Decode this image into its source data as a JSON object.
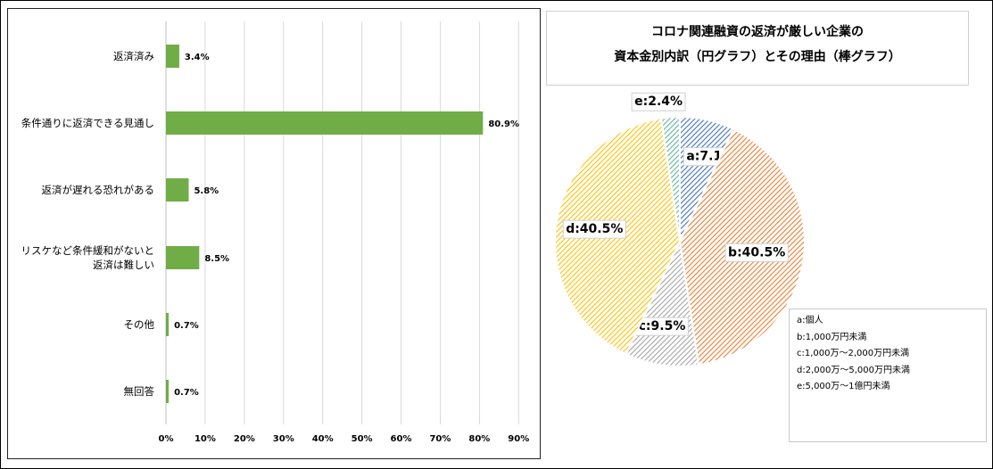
{
  "chart_title": {
    "line1": "コロナ関連融資の返済が厳しい企業の",
    "line2": "資本金別内訳（円グラフ）とその理由（棒グラフ）"
  },
  "chart_data": [
    {
      "type": "bar",
      "orientation": "horizontal",
      "categories": [
        [
          "返済済み"
        ],
        [
          "条件通りに返済できる見通し"
        ],
        [
          "返済が遅れる恐れがある"
        ],
        [
          "リスケなど条件緩和がないと",
          "返済は難しい"
        ],
        [
          "その他"
        ],
        [
          "無回答"
        ]
      ],
      "values": [
        3.4,
        80.9,
        5.8,
        8.5,
        0.7,
        0.7
      ],
      "value_labels": [
        "3.4%",
        "80.9%",
        "5.8%",
        "8.5%",
        "0.7%",
        "0.7%"
      ],
      "xlim": [
        0,
        90
      ],
      "xticks": [
        0,
        10,
        20,
        30,
        40,
        50,
        60,
        70,
        80,
        90
      ],
      "xtick_labels": [
        "0%",
        "10%",
        "20%",
        "30%",
        "40%",
        "50%",
        "60%",
        "70%",
        "80%",
        "90%"
      ],
      "grid": true,
      "color": "#70ad47"
    },
    {
      "type": "pie",
      "slices": [
        {
          "key": "a",
          "value": 7.1,
          "label": "a:7.1%",
          "color": "#4472c4"
        },
        {
          "key": "b",
          "value": 40.5,
          "label": "b:40.5%",
          "color": "#ed7d31"
        },
        {
          "key": "c",
          "value": 9.5,
          "label": "c:9.5%",
          "color": "#a5a5a5"
        },
        {
          "key": "d",
          "value": 40.5,
          "label": "d:40.5%",
          "color": "#ffc000"
        },
        {
          "key": "e",
          "value": 2.4,
          "label": "e:2.4%",
          "color": "#5fb59a"
        }
      ],
      "legend": [
        "a:個人",
        "b:1,000万円未満",
        "c:1,000万～2,000万円未満",
        "d:2,000万～5,000万円未満",
        "e:5,000万～1億円未満"
      ],
      "legend_position": "bottom-right"
    }
  ]
}
